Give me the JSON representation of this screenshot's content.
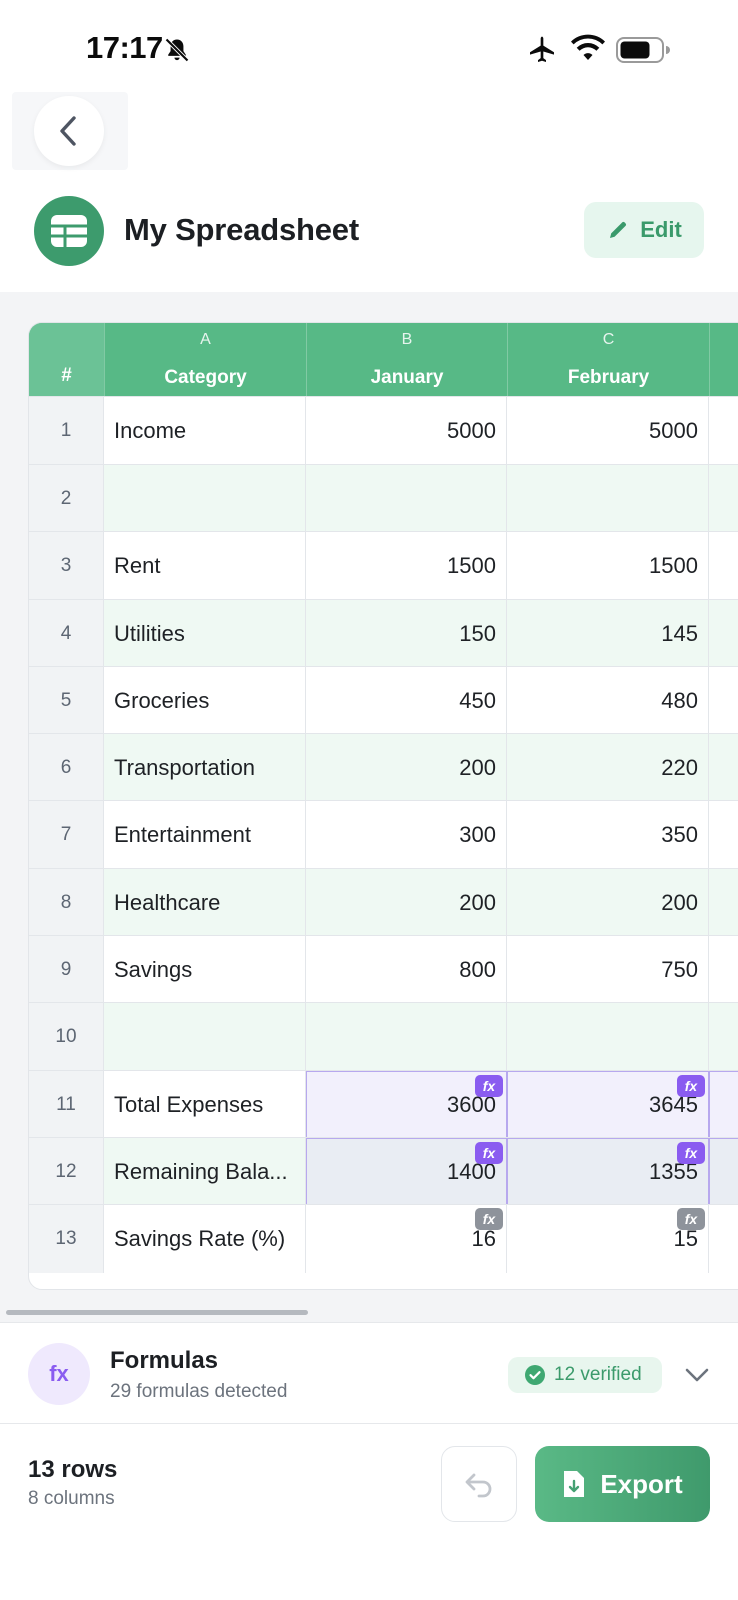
{
  "status_bar": {
    "time": "17:17"
  },
  "header": {
    "title": "My Spreadsheet",
    "edit_label": "Edit"
  },
  "grid": {
    "num_header": "#",
    "columns": [
      {
        "letter": "A",
        "name": "Category"
      },
      {
        "letter": "B",
        "name": "January"
      },
      {
        "letter": "C",
        "name": "February"
      }
    ],
    "rows": [
      {
        "num": "1",
        "category": "Income",
        "january": "5000",
        "february": "5000"
      },
      {
        "num": "2",
        "category": "",
        "january": "",
        "february": ""
      },
      {
        "num": "3",
        "category": "Rent",
        "january": "1500",
        "february": "1500"
      },
      {
        "num": "4",
        "category": "Utilities",
        "january": "150",
        "february": "145"
      },
      {
        "num": "5",
        "category": "Groceries",
        "january": "450",
        "february": "480"
      },
      {
        "num": "6",
        "category": "Transportation",
        "january": "200",
        "february": "220"
      },
      {
        "num": "7",
        "category": "Entertainment",
        "january": "300",
        "february": "350"
      },
      {
        "num": "8",
        "category": "Healthcare",
        "january": "200",
        "february": "200"
      },
      {
        "num": "9",
        "category": "Savings",
        "january": "800",
        "february": "750"
      },
      {
        "num": "10",
        "category": "",
        "january": "",
        "february": ""
      },
      {
        "num": "11",
        "category": "Total Expenses",
        "january": "3600",
        "february": "3645"
      },
      {
        "num": "12",
        "category": "Remaining Bala...",
        "january": "1400",
        "february": "1355"
      },
      {
        "num": "13",
        "category": "Savings Rate (%)",
        "january": "16",
        "february": "15"
      }
    ],
    "fx_label": "fx"
  },
  "formulas": {
    "icon_label": "fx",
    "title": "Formulas",
    "subtitle": "29 formulas detected",
    "verified": "12 verified"
  },
  "footer": {
    "rows": "13 rows",
    "columns": "8 columns",
    "export_label": "Export"
  },
  "colors": {
    "brand_green": "#57b986",
    "formula_purple": "#8a5cf0"
  }
}
